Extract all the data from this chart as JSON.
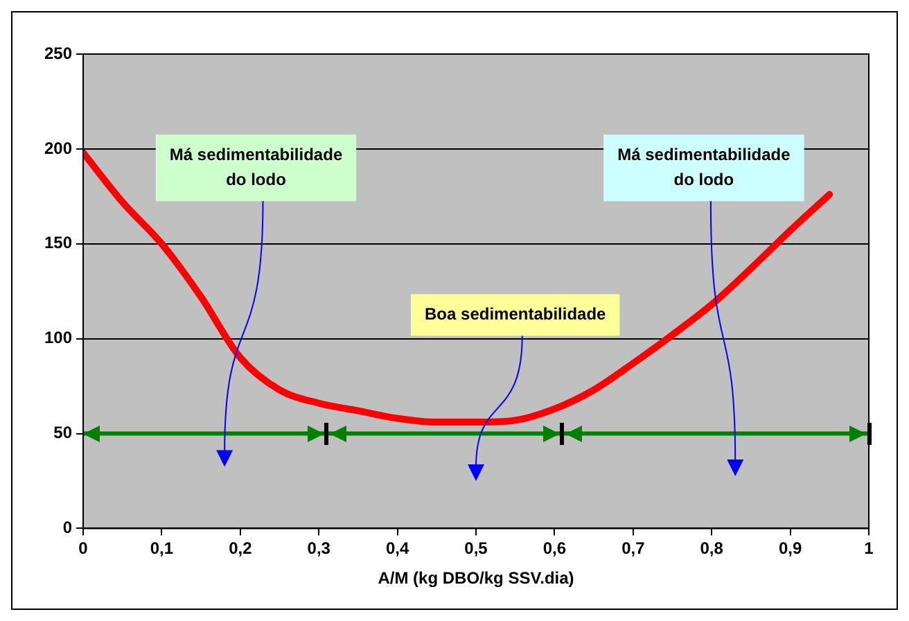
{
  "chart_data": {
    "type": "line",
    "xlabel": "A/M (kg DBO/kg SSV.dia)",
    "xlim": [
      0,
      1
    ],
    "xticks": [
      0,
      {
        "value": 0.1,
        "label": "0,1"
      },
      {
        "value": 0.2,
        "label": "0,2"
      },
      {
        "value": 0.3,
        "label": "0,3"
      },
      {
        "value": 0.4,
        "label": "0,4"
      },
      {
        "value": 0.5,
        "label": "0,5"
      },
      {
        "value": 0.6,
        "label": "0,6"
      },
      {
        "value": 0.7,
        "label": "0,7"
      },
      {
        "value": 0.8,
        "label": "0,8"
      },
      {
        "value": 0.9,
        "label": "0,9"
      },
      1
    ],
    "ylim": [
      0,
      250
    ],
    "yticks": [
      0,
      50,
      100,
      150,
      200,
      250
    ],
    "grid": "y",
    "legend": false,
    "marker": "none",
    "line_style": "solid",
    "series": [
      {
        "color": "#ff0000",
        "x": [
          0,
          0.05,
          0.1,
          0.15,
          0.2,
          0.25,
          0.3,
          0.35,
          0.4,
          0.45,
          0.5,
          0.55,
          0.6,
          0.65,
          0.7,
          0.75,
          0.8,
          0.85,
          0.9,
          0.95
        ],
        "values": [
          198,
          172,
          150,
          122,
          90,
          73,
          66,
          62,
          58,
          56,
          56,
          57,
          63,
          73,
          87,
          102,
          118,
          137,
          157,
          176
        ]
      },
      {
        "color": "#008000",
        "x": [
          0,
          0.31,
          0.61,
          1
        ],
        "values": [
          50,
          50,
          50,
          50
        ]
      }
    ],
    "annotations": [
      "Má sedimentabilidade\ndo lodo",
      "Boa sedimentabilidade",
      "Má sedimentabilidade\ndo lodo"
    ]
  }
}
